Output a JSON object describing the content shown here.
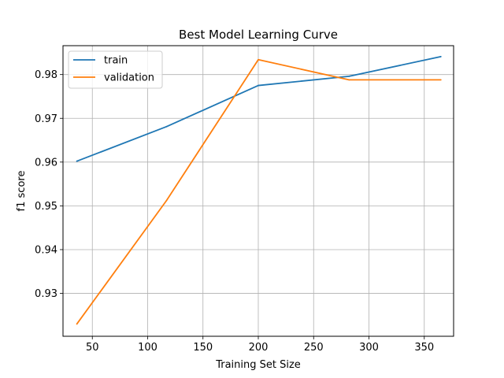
{
  "chart_data": {
    "type": "line",
    "title": "Best Model Learning Curve",
    "xlabel": "Training Set Size",
    "ylabel": "f1 score",
    "xlim": [
      23.5,
      376.5
    ],
    "ylim": [
      0.9202,
      0.9866
    ],
    "xticks": [
      50,
      100,
      150,
      200,
      250,
      300,
      350
    ],
    "yticks": [
      0.93,
      0.94,
      0.95,
      0.96,
      0.97,
      0.98
    ],
    "grid": true,
    "legend_position": "top-left",
    "series": [
      {
        "name": "train",
        "color": "#1f77b4",
        "x": [
          36,
          117,
          200,
          282,
          365
        ],
        "y": [
          0.9602,
          0.9681,
          0.9775,
          0.9796,
          0.9841
        ]
      },
      {
        "name": "validation",
        "color": "#ff7f0e",
        "x": [
          36,
          117,
          200,
          282,
          365
        ],
        "y": [
          0.923,
          0.9512,
          0.9834,
          0.9788,
          0.9788
        ]
      }
    ]
  }
}
